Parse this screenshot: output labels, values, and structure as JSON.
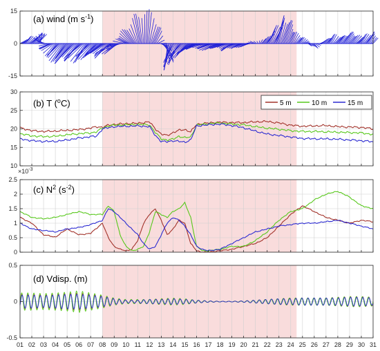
{
  "colors": {
    "shade": "#f9dcdc",
    "wind": "#1f1fd6",
    "s5m": "#a2322a",
    "s10m": "#57c81b",
    "s15m": "#2b2ad1",
    "grid": "#d0d0d0",
    "axis": "#262626"
  },
  "chart_data": [
    {
      "id": "wind",
      "type": "line",
      "title": "(a) wind (m s",
      "title_sup": "-1",
      "title_end": ")",
      "ylim": [
        -15,
        15
      ],
      "yticks": [
        -15,
        0,
        15
      ],
      "ytick_labels": [
        "-15",
        "0",
        "15"
      ],
      "shaded_days": [
        8,
        24.5
      ],
      "x_days": [
        1,
        1.5,
        2,
        2.5,
        3,
        3.5,
        4,
        4.5,
        5,
        5.5,
        6,
        6.5,
        7,
        7.5,
        8,
        8.5,
        9,
        9.5,
        10,
        10.5,
        11,
        11.3,
        11.6,
        12,
        12.5,
        13,
        13.3,
        13.6,
        14,
        14.5,
        15,
        15.5,
        16,
        16.5,
        17,
        17.5,
        18,
        18.5,
        19,
        19.5,
        20,
        20.5,
        21,
        21.5,
        22,
        22.5,
        23,
        23.5,
        24,
        24.5,
        25,
        25.5,
        26,
        26.5,
        27,
        27.5,
        28,
        28.5,
        29,
        29.5,
        30,
        30.5,
        31
      ],
      "v_ms": [
        2,
        3,
        4,
        5,
        3,
        -2,
        -5,
        -7,
        -8,
        -8,
        -7,
        -8,
        -7,
        -6,
        -5,
        -6,
        -5,
        -3,
        2,
        5,
        9,
        13,
        15,
        12,
        5,
        -3,
        -9,
        -11,
        -10,
        -8,
        -6,
        -5,
        -3,
        -2,
        -2,
        -3,
        -2,
        -2,
        -3,
        -2,
        -2,
        -1,
        1,
        2,
        6,
        9,
        12,
        9,
        5,
        3,
        2,
        -1,
        -2,
        1,
        3,
        4,
        3,
        5,
        4,
        3,
        4,
        5,
        3
      ],
      "u_ms": [
        4,
        4,
        5,
        6,
        -6,
        -6,
        -7,
        -7,
        -8,
        -9,
        -9,
        -9,
        -8,
        -8,
        -9,
        -9,
        -9,
        -8,
        -7,
        -6,
        -5,
        -3,
        0,
        3,
        4,
        6,
        5,
        -3,
        -5,
        -7,
        -7,
        -8,
        -9,
        -9,
        -8,
        -8,
        -7,
        -7,
        -6,
        -6,
        -5,
        -4,
        -3,
        3,
        5,
        5,
        4,
        4,
        3,
        3,
        3,
        2,
        2,
        3,
        3,
        3,
        4,
        4,
        4,
        4,
        4,
        4,
        3
      ]
    },
    {
      "id": "temperature",
      "type": "line",
      "title": "(b) T (",
      "title_sup": "o",
      "title_end": "C)",
      "ylim": [
        10,
        30
      ],
      "yticks": [
        10,
        15,
        20,
        25,
        30
      ],
      "ytick_labels": [
        "10",
        "15",
        "20",
        "25",
        "30"
      ],
      "shaded_days": [
        8,
        24.5
      ],
      "x_days": [
        1,
        2,
        3,
        4,
        5,
        6,
        7,
        7.5,
        8,
        8.5,
        9,
        10,
        11,
        12,
        12.5,
        13,
        13.5,
        14,
        14.5,
        15,
        15.5,
        16,
        17,
        18,
        19,
        20,
        21,
        22,
        23,
        24,
        25,
        26,
        27,
        28,
        29,
        30,
        31
      ],
      "series": [
        {
          "name": "5 m",
          "values": [
            20.3,
            19.5,
            19.3,
            19.4,
            19.6,
            19.8,
            20.2,
            20.6,
            20.4,
            21.0,
            21.2,
            21.4,
            21.5,
            21.9,
            20.0,
            18.6,
            18.2,
            19.0,
            19.6,
            19.8,
            19.2,
            21.2,
            21.6,
            21.8,
            21.7,
            21.7,
            21.9,
            22.0,
            21.6,
            21.0,
            20.7,
            20.8,
            20.9,
            20.6,
            20.5,
            20.4,
            20.0
          ]
        },
        {
          "name": "10 m",
          "values": [
            18.7,
            18.1,
            17.9,
            18.0,
            18.4,
            18.7,
            18.9,
            19.2,
            20.2,
            20.8,
            21.0,
            21.1,
            21.2,
            21.1,
            19.0,
            17.3,
            17.0,
            17.2,
            18.0,
            17.6,
            17.8,
            21.0,
            21.4,
            21.6,
            21.3,
            21.1,
            20.6,
            20.2,
            19.9,
            19.5,
            19.3,
            19.3,
            19.2,
            19.1,
            19.0,
            18.9,
            18.5
          ]
        },
        {
          "name": "15 m",
          "values": [
            17.3,
            16.8,
            16.6,
            16.6,
            17.0,
            17.5,
            17.9,
            18.0,
            20.0,
            20.3,
            20.6,
            20.7,
            20.8,
            20.6,
            18.2,
            16.6,
            16.5,
            16.8,
            16.6,
            16.4,
            17.0,
            20.8,
            21.1,
            21.3,
            20.9,
            20.3,
            19.4,
            18.6,
            18.2,
            17.8,
            17.4,
            17.3,
            17.3,
            17.2,
            17.0,
            16.8,
            16.5
          ]
        }
      ]
    },
    {
      "id": "n2",
      "type": "line",
      "title": "(c) N",
      "title_sup": "2",
      "title_end": " (s",
      "title_sup2": "-2",
      "title_end2": ")",
      "exponent": "-3",
      "ylim": [
        0,
        2.5
      ],
      "yticks": [
        0,
        0.5,
        1,
        1.5,
        2,
        2.5
      ],
      "ytick_labels": [
        "0",
        "0.5",
        "1",
        "1.5",
        "2",
        "2.5"
      ],
      "shaded_days": [
        8,
        24.5
      ],
      "x_days": [
        1,
        2,
        3,
        4,
        5,
        6,
        7,
        8,
        8.5,
        9,
        9.5,
        10,
        10.5,
        11,
        11.5,
        12,
        12.5,
        13,
        13.5,
        14,
        14.5,
        15,
        15.5,
        16,
        16.5,
        17,
        18,
        19,
        20,
        21,
        22,
        23,
        24,
        25,
        26,
        27,
        28,
        29,
        30,
        31
      ],
      "series": [
        {
          "name": "5 m",
          "values": [
            1.2,
            1.0,
            0.6,
            0.52,
            0.8,
            0.6,
            0.65,
            1.0,
            0.5,
            0.2,
            0.1,
            0.05,
            0.1,
            0.4,
            1.0,
            1.3,
            1.5,
            1.1,
            0.6,
            0.8,
            1.1,
            1.0,
            0.3,
            0.05,
            0.0,
            0.0,
            0.05,
            0.1,
            0.2,
            0.3,
            0.5,
            0.9,
            1.3,
            1.6,
            1.4,
            1.2,
            1.1,
            1.0,
            1.1,
            1.05
          ]
        },
        {
          "name": "10 m",
          "values": [
            1.4,
            1.2,
            1.15,
            1.2,
            1.3,
            1.4,
            1.3,
            1.3,
            1.6,
            1.4,
            0.6,
            0.2,
            0.05,
            0.1,
            0.2,
            0.7,
            1.4,
            1.3,
            1.2,
            1.4,
            1.5,
            1.7,
            1.2,
            0.2,
            0.05,
            0.05,
            0.1,
            0.2,
            0.2,
            0.4,
            0.7,
            1.1,
            1.4,
            1.5,
            1.8,
            2.0,
            2.1,
            1.9,
            1.6,
            1.5
          ]
        },
        {
          "name": "15 m",
          "values": [
            1.0,
            0.8,
            0.75,
            0.7,
            0.8,
            0.85,
            0.95,
            1.1,
            1.5,
            1.4,
            1.2,
            1.0,
            0.8,
            0.6,
            0.3,
            0.1,
            0.2,
            0.6,
            1.0,
            1.2,
            1.1,
            0.9,
            0.6,
            0.2,
            0.1,
            0.05,
            0.1,
            0.3,
            0.5,
            0.7,
            0.8,
            0.9,
            0.95,
            1.0,
            1.0,
            1.05,
            1.1,
            1.0,
            0.9,
            0.8
          ]
        }
      ]
    },
    {
      "id": "vdisp",
      "type": "line",
      "title": "(d) Vdisp. (m)",
      "ylim": [
        -0.5,
        0.5
      ],
      "yticks": [
        -0.5,
        0,
        0.5
      ],
      "ytick_labels": [
        "-0.5",
        "0",
        "0.5"
      ],
      "shaded_days": [
        8,
        24.5
      ],
      "period_days": 0.517,
      "x_days": [
        1,
        2,
        3,
        4,
        5,
        6,
        7,
        8,
        9,
        10,
        11,
        12,
        13,
        14,
        15,
        16,
        17,
        18,
        19,
        20,
        21,
        22,
        23,
        24,
        25,
        26,
        27,
        28,
        29,
        30,
        31
      ],
      "series": [
        {
          "name": "5 m",
          "amplitudes": [
            0.1,
            0.1,
            0.09,
            0.1,
            0.11,
            0.12,
            0.1,
            0.08,
            0.04,
            0.02,
            0.02,
            0.03,
            0.04,
            0.04,
            0.03,
            0.02,
            0.01,
            0.005,
            0.005,
            0.01,
            0.02,
            0.03,
            0.04,
            0.05,
            0.05,
            0.05,
            0.05,
            0.06,
            0.07,
            0.07,
            0.06
          ]
        },
        {
          "name": "10 m",
          "amplitudes": [
            0.12,
            0.12,
            0.11,
            0.12,
            0.13,
            0.15,
            0.12,
            0.09,
            0.05,
            0.03,
            0.03,
            0.03,
            0.04,
            0.05,
            0.04,
            0.02,
            0.01,
            0.005,
            0.005,
            0.01,
            0.02,
            0.03,
            0.04,
            0.05,
            0.05,
            0.05,
            0.05,
            0.06,
            0.07,
            0.07,
            0.06
          ]
        },
        {
          "name": "15 m",
          "amplitudes": [
            0.09,
            0.09,
            0.08,
            0.09,
            0.1,
            0.1,
            0.09,
            0.07,
            0.04,
            0.02,
            0.02,
            0.03,
            0.03,
            0.04,
            0.03,
            0.02,
            0.01,
            0.005,
            0.005,
            0.01,
            0.02,
            0.03,
            0.04,
            0.04,
            0.05,
            0.05,
            0.05,
            0.05,
            0.06,
            0.06,
            0.05
          ]
        }
      ]
    }
  ],
  "x_axis": {
    "range": [
      1,
      31
    ],
    "tick_labels": [
      "01",
      "02",
      "03",
      "04",
      "05",
      "06",
      "07",
      "08",
      "09",
      "10",
      "11",
      "12",
      "13",
      "14",
      "15",
      "16",
      "17",
      "18",
      "19",
      "20",
      "21",
      "22",
      "23",
      "24",
      "25",
      "26",
      "27",
      "28",
      "29",
      "30",
      "31"
    ]
  },
  "legend": {
    "position": "top-right",
    "items": [
      "5 m",
      "10 m",
      "15 m"
    ]
  }
}
